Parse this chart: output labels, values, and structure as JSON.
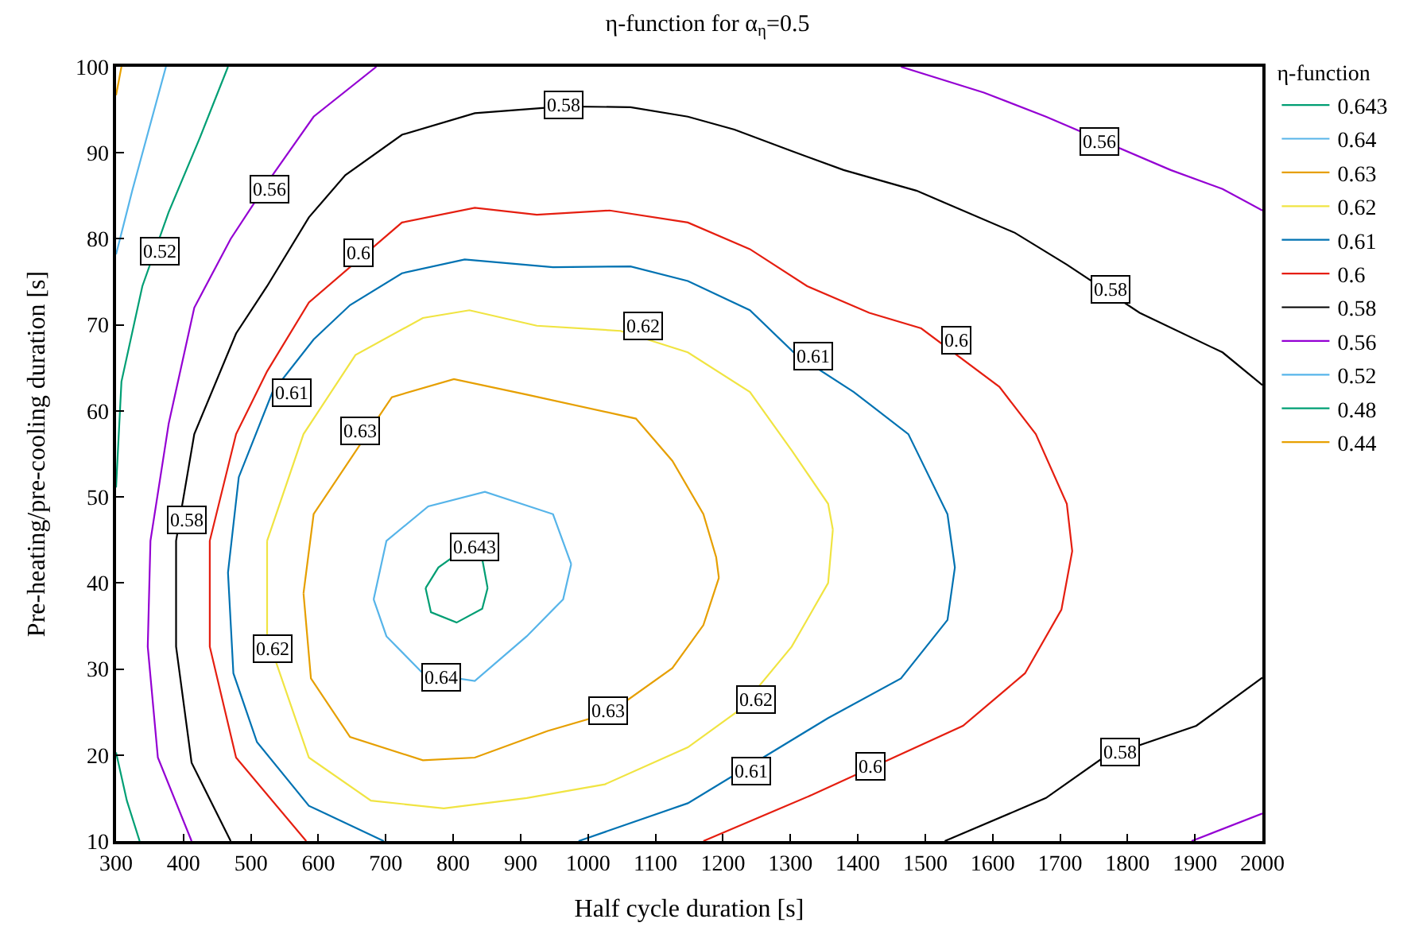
{
  "chart_data": {
    "type": "line",
    "title": "η-function for α$_{η}$=0.5",
    "xlabel": "Half cycle duration [s]",
    "ylabel": "Pre-heating/pre-cooling duration [s]",
    "legend_title": "η-function",
    "legend": "top right",
    "grid": false,
    "marker": "none",
    "line_style": "solid",
    "xlim": [
      300,
      2000
    ],
    "xticks": [
      300,
      400,
      500,
      600,
      700,
      800,
      900,
      1000,
      1100,
      1200,
      1300,
      1400,
      1500,
      1600,
      1700,
      1800,
      1900,
      2000
    ],
    "ylim": [
      10,
      100
    ],
    "yticks": [
      10,
      20,
      30,
      40,
      50,
      60,
      70,
      80,
      90,
      100
    ],
    "series": [
      {
        "name": "0.643",
        "color": "#009e73",
        "x": [
          759,
          778,
          801,
          843,
          851,
          null,
          759,
          767,
          805,
          843,
          851
        ],
        "values": [
          39.4,
          41.8,
          43.1,
          42.8,
          39.4,
          null,
          39.4,
          36.6,
          35.4,
          37.0,
          39.4
        ]
      },
      {
        "name": "0.64",
        "color": "#56b4e9",
        "x": [
          682,
          701,
          763,
          847,
          948,
          975,
          null,
          682,
          701,
          755,
          832,
          909,
          963,
          975
        ],
        "values": [
          38.1,
          44.9,
          48.9,
          50.6,
          48.0,
          42.2,
          null,
          38.1,
          33.8,
          29.5,
          28.6,
          33.8,
          38.1,
          42.2
        ]
      },
      {
        "name": "0.63",
        "color": "#e69f00",
        "x": [
          578,
          593,
          709,
          801,
          909,
          1071,
          1125,
          1171,
          1190,
          1194,
          null,
          578,
          589,
          647,
          755,
          832,
          940,
          1032,
          1125,
          1171,
          1194
        ],
        "values": [
          38.8,
          48.0,
          61.6,
          63.7,
          61.9,
          59.1,
          54.2,
          48.0,
          43.0,
          40.6,
          null,
          38.8,
          28.9,
          22.1,
          19.4,
          19.7,
          22.8,
          24.9,
          30.1,
          35.1,
          40.6
        ]
      },
      {
        "name": "0.62",
        "color": "#f0e442",
        "x": [
          524,
          578,
          655,
          755,
          824,
          924,
          1048,
          1148,
          1240,
          1302,
          1356,
          1363,
          null,
          524,
          524,
          586,
          678,
          786,
          909,
          1025,
          1148,
          1224,
          1302,
          1356,
          1363
        ],
        "values": [
          44.9,
          57.3,
          66.5,
          70.8,
          71.7,
          69.9,
          69.3,
          66.8,
          62.2,
          55.4,
          49.2,
          46.2,
          null,
          44.9,
          33.8,
          19.7,
          14.7,
          13.8,
          15.0,
          16.6,
          20.9,
          25.2,
          32.6,
          40.0,
          46.2
        ]
      },
      {
        "name": "0.61",
        "color": "#0072b2",
        "x": [
          697,
          586,
          509,
          474,
          466,
          482,
          532,
          593,
          647,
          724,
          817,
          948,
          1063,
          1148,
          1240,
          1309,
          1394,
          1475,
          1533,
          1544,
          1533,
          1464,
          1356,
          1148,
          986
        ],
        "values": [
          10,
          14.1,
          21.5,
          29.5,
          41.2,
          52.3,
          62.2,
          68.3,
          72.3,
          76.0,
          77.6,
          76.7,
          76.8,
          75.1,
          71.7,
          66.5,
          62.2,
          57.3,
          48.0,
          41.8,
          35.7,
          28.9,
          24.3,
          14.4,
          10
        ]
      },
      {
        "name": "0.6",
        "color": "#e51e10",
        "x": [
          582,
          478,
          439,
          439,
          478,
          524,
          586,
          724,
          832,
          924,
          1032,
          1148,
          1240,
          1325,
          1417,
          1494,
          1610,
          1664,
          1710,
          1718,
          1702,
          1648,
          1556,
          1333,
          1171
        ],
        "values": [
          10,
          19.7,
          32.6,
          44.9,
          57.3,
          64.6,
          72.6,
          81.9,
          83.6,
          82.8,
          83.3,
          81.9,
          78.8,
          74.5,
          71.4,
          69.6,
          62.8,
          57.3,
          49.2,
          43.7,
          36.9,
          29.5,
          23.4,
          15.4,
          10
        ]
      },
      {
        "name": "0.58",
        "color": "#000000",
        "x": [
          470,
          412,
          389,
          389,
          416,
          478,
          524,
          586,
          640,
          724,
          832,
          963,
          1063,
          1148,
          1217,
          1302,
          1379,
          1487,
          1633,
          1710,
          1818,
          1941,
          2000,
          null,
          1529,
          1679,
          1764,
          1902,
          2000
        ],
        "values": [
          10,
          19.1,
          32.6,
          44.9,
          57.3,
          69.0,
          74.5,
          82.5,
          87.4,
          92.1,
          94.6,
          95.4,
          95.3,
          94.2,
          92.7,
          90.2,
          88.0,
          85.6,
          80.7,
          77.0,
          71.4,
          66.8,
          63.0,
          null,
          10,
          15.0,
          19.7,
          23.4,
          29.0
        ]
      },
      {
        "name": "0.56",
        "color": "#9400d3",
        "x": [
          412,
          362,
          347,
          351,
          378,
          416,
          470,
          532,
          593,
          686,
          null,
          1464,
          1587,
          1679,
          1864,
          1941,
          2000,
          null,
          1895,
          2000
        ],
        "values": [
          10,
          19.7,
          32.6,
          44.9,
          58.5,
          72.0,
          80.0,
          87.4,
          94.2,
          100,
          null,
          100,
          97.0,
          94.2,
          88.0,
          85.8,
          83.3,
          null,
          10,
          13.2
        ]
      },
      {
        "name": "0.52",
        "color": "#56b5ea",
        "x": [
          300,
          324,
          374
        ],
        "values": [
          78.2,
          85.6,
          100
        ]
      },
      {
        "name": "0.48",
        "color": "#009f74",
        "x": [
          300,
          308,
          339,
          378,
          424,
          466,
          null,
          300,
          316,
          335
        ],
        "values": [
          51.1,
          63.4,
          74.5,
          83.1,
          91.7,
          100,
          null,
          20.3,
          14.7,
          10
        ]
      },
      {
        "name": "0.44",
        "color": "#e7a001",
        "x": [
          300,
          308
        ],
        "values": [
          96.7,
          100
        ]
      }
    ],
    "annotations": [
      {
        "text": "0.643",
        "x": 831,
        "y": 44.2
      },
      {
        "text": "0.64",
        "x": 783,
        "y": 29.1
      },
      {
        "text": "0.63",
        "x": 663,
        "y": 57.7
      },
      {
        "text": "0.63",
        "x": 1030,
        "y": 25.2
      },
      {
        "text": "0.62",
        "x": 1082,
        "y": 69.8
      },
      {
        "text": "0.62",
        "x": 533,
        "y": 32.4
      },
      {
        "text": "0.62",
        "x": 1248,
        "y": 26.4
      },
      {
        "text": "0.61",
        "x": 561,
        "y": 62.1
      },
      {
        "text": "0.61",
        "x": 1334,
        "y": 66.3
      },
      {
        "text": "0.61",
        "x": 1242,
        "y": 18.1
      },
      {
        "text": "0.6",
        "x": 659,
        "y": 78.3
      },
      {
        "text": "0.6",
        "x": 1547,
        "y": 68.2
      },
      {
        "text": "0.6",
        "x": 1419,
        "y": 18.7
      },
      {
        "text": "0.58",
        "x": 963,
        "y": 95.6
      },
      {
        "text": "0.58",
        "x": 405,
        "y": 47.4
      },
      {
        "text": "0.58",
        "x": 1775,
        "y": 74.2
      },
      {
        "text": "0.58",
        "x": 1788,
        "y": 20.3
      },
      {
        "text": "0.56",
        "x": 528,
        "y": 85.7
      },
      {
        "text": "0.56",
        "x": 1758,
        "y": 91.3
      },
      {
        "text": "0.52",
        "x": 366,
        "y": 78.6
      }
    ]
  }
}
